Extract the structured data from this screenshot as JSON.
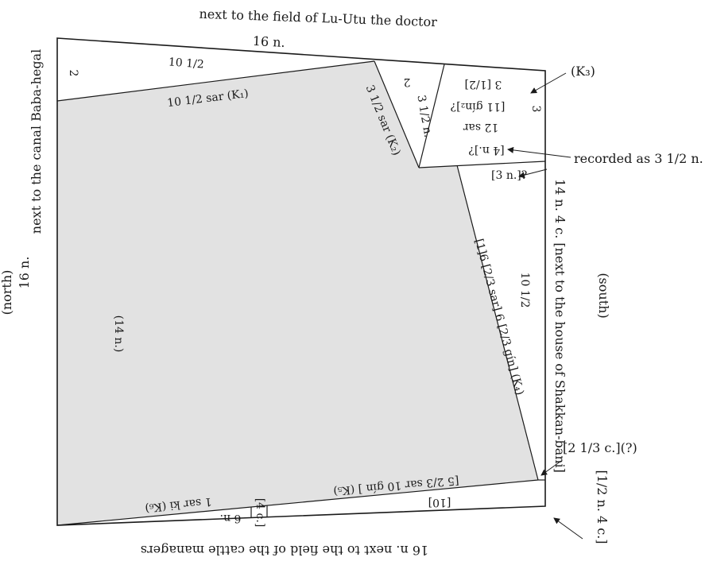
{
  "top": {
    "neighbor": "next to the field of Lu-Utu the doctor",
    "length": "16 n."
  },
  "bottom": {
    "label": "16 n.   next to the field of the cattle managers"
  },
  "left_side": {
    "direction": "(north)",
    "length": "16 n.",
    "neighbor": "next to the canal Baba-hegal"
  },
  "right_side": {
    "direction": "(south)",
    "label": "14 n. 4 c. [next to the house of Shakkan-bani]"
  },
  "annotations": {
    "k3": "(K₃)",
    "recorded": "recorded as 3 1/2 n.",
    "two_third_c": "[2 1/3 c.](?)",
    "half_n": "[1/2 n.   4 c.]"
  },
  "inner": {
    "top_2_left": "2",
    "top_10_half": "10 1/2",
    "k1": "10 1/2 sar  (K₁)",
    "k2": "3 1/2 sar (K₂)",
    "tri_2": "2",
    "tri_3half": "3 1/2 n.",
    "k3_half": "3 [1/2]",
    "k3_gin": "[11 gín₂]?",
    "k3_sar": "12 sar",
    "k3_4n": "[4 n.]?",
    "k3_3n": "[3 n.]?",
    "k3_corner": "3",
    "mid_10half": "10 1/2",
    "k4": "[1]6 [2/3 sar] 6 [2/3 gín]  (K₄)",
    "left_14n": "(14 n.)",
    "k5": "[5 2/3 sar 10 gín ] (K₅)",
    "k6": "1 sar ki (K₆)",
    "b10": "[10]",
    "b6n": "6 n.",
    "b4c": "[4 c.]"
  },
  "colors": {
    "shade": "#e2e2e2",
    "line": "#1a1a1a"
  }
}
